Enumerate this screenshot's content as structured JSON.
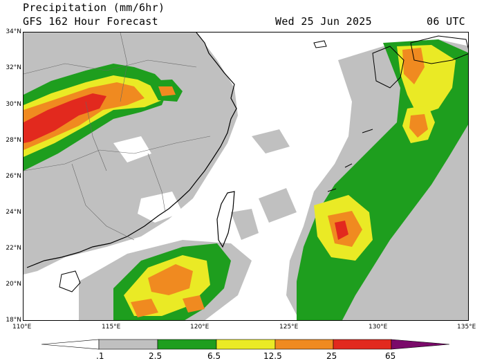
{
  "header": {
    "title_line1": "Precipitation (mm/6hr)",
    "title_line2": "GFS 162 Hour Forecast",
    "valid_date": "Wed 25 Jun 2025",
    "valid_time": "06 UTC"
  },
  "map": {
    "lat_labels": [
      "34°N",
      "32°N",
      "30°N",
      "28°N",
      "26°N",
      "24°N",
      "22°N",
      "20°N",
      "18°N"
    ],
    "lon_labels": [
      "110°E",
      "115°E",
      "120°E",
      "125°E",
      "130°E",
      "135°E"
    ]
  },
  "colorbar": {
    "levels": [
      ".1",
      "2.5",
      "6.5",
      "12.5",
      "25",
      "65"
    ],
    "colors": [
      "#ffffff",
      "#c0c0c0",
      "#1e9e1e",
      "#eaea25",
      "#f08a20",
      "#e2291e",
      "#7a0a6a"
    ]
  }
}
